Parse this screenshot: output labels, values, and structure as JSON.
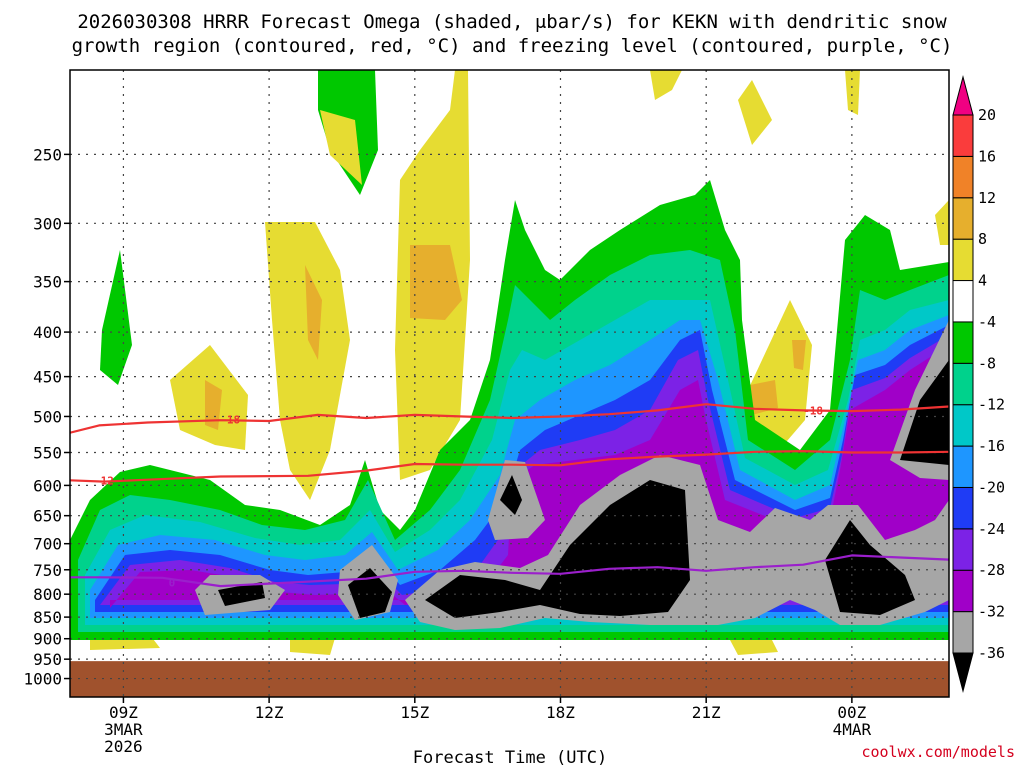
{
  "chart_data": {
    "type": "heatmap",
    "title_line1": "2026030308 HRRR Forecast Omega (shaded, μbar/s) for KEKN with dendritic snow",
    "title_line2": "growth region (contoured, red, °C) and freezing level (contoured, purple, °C)",
    "xlabel": "Forecast Time (UTC)",
    "credit": "coolwx.com/models",
    "y_axis": {
      "scale": "log-pressure",
      "range_hpa": [
        1050,
        200
      ],
      "ticks": [
        250,
        300,
        350,
        400,
        450,
        500,
        550,
        600,
        650,
        700,
        750,
        800,
        850,
        900,
        950,
        1000
      ]
    },
    "x_axis": {
      "range_hours": [
        7.9,
        26.0
      ],
      "ticks": [
        {
          "hour": 9,
          "label": "09Z",
          "sub1": "3MAR",
          "sub2": "2026"
        },
        {
          "hour": 12,
          "label": "12Z",
          "sub1": "",
          "sub2": ""
        },
        {
          "hour": 15,
          "label": "15Z",
          "sub1": "",
          "sub2": ""
        },
        {
          "hour": 18,
          "label": "18Z",
          "sub1": "",
          "sub2": ""
        },
        {
          "hour": 21,
          "label": "21Z",
          "sub1": "",
          "sub2": ""
        },
        {
          "hour": 24,
          "label": "00Z",
          "sub1": "4MAR",
          "sub2": ""
        }
      ]
    },
    "grid": true,
    "ground_level_hpa": 955,
    "ground_color": "#a0522d",
    "colorbar": {
      "position": "right",
      "levels": [
        -36,
        -32,
        -28,
        -24,
        -20,
        -16,
        -12,
        -8,
        -4,
        4,
        8,
        12,
        16,
        20
      ],
      "tick_labels": [
        "20",
        "16",
        "12",
        "8",
        "4",
        "-4",
        "-8",
        "-12",
        "-16",
        "-20",
        "-24",
        "-28",
        "-32",
        "-36"
      ],
      "colors": [
        "#000000",
        "#a6a6a6",
        "#a000c8",
        "#7c22e6",
        "#1f3cf5",
        "#1e96ff",
        "#00c8c8",
        "#00d28c",
        "#00c800",
        "#ffffff",
        "#e6dc32",
        "#e6af2d",
        "#f08228",
        "#fa3c3c",
        "#f00082"
      ]
    },
    "contours": [
      {
        "color": "#ee3333",
        "value": -18,
        "label": "-18",
        "points": [
          [
            7.9,
            522
          ],
          [
            8.5,
            512
          ],
          [
            9.5,
            508
          ],
          [
            11,
            505
          ],
          [
            12,
            506
          ],
          [
            13,
            498
          ],
          [
            14,
            502
          ],
          [
            15,
            498
          ],
          [
            16,
            500
          ],
          [
            17,
            502
          ],
          [
            18,
            500
          ],
          [
            19,
            497
          ],
          [
            20,
            492
          ],
          [
            21,
            484
          ],
          [
            22,
            490
          ],
          [
            23,
            492
          ],
          [
            24,
            493
          ],
          [
            25,
            491
          ],
          [
            26,
            487
          ]
        ]
      },
      {
        "color": "#ee3333",
        "value": -12,
        "label": "-12",
        "points": [
          [
            7.9,
            592
          ],
          [
            8.6,
            594
          ],
          [
            9.5,
            591
          ],
          [
            11,
            586
          ],
          [
            12.8,
            585
          ],
          [
            14,
            577
          ],
          [
            15,
            567
          ],
          [
            16,
            568
          ],
          [
            17,
            568
          ],
          [
            18,
            569
          ],
          [
            19,
            560
          ],
          [
            20,
            556
          ],
          [
            21,
            553
          ],
          [
            22,
            549
          ],
          [
            23,
            548
          ],
          [
            24,
            550
          ],
          [
            25,
            550
          ],
          [
            26,
            549
          ]
        ]
      },
      {
        "color": "#9b1fcc",
        "value": 0,
        "label": "0",
        "points": [
          [
            7.9,
            765
          ],
          [
            8.5,
            765
          ],
          [
            9.8,
            766
          ],
          [
            11,
            783
          ],
          [
            12,
            778
          ],
          [
            14,
            768
          ],
          [
            15,
            754
          ],
          [
            16,
            752
          ],
          [
            17,
            756
          ],
          [
            18,
            758
          ],
          [
            19,
            748
          ],
          [
            20,
            745
          ],
          [
            21,
            752
          ],
          [
            22,
            745
          ],
          [
            23,
            740
          ],
          [
            24,
            722
          ],
          [
            25,
            726
          ],
          [
            26,
            730
          ]
        ]
      }
    ],
    "contour_labels": [
      {
        "text": "-18",
        "hour": 11.2,
        "p": 504,
        "color": "#ee3333"
      },
      {
        "text": "-18",
        "hour": 23.2,
        "p": 492,
        "color": "#ee3333"
      },
      {
        "text": "-12",
        "hour": 8.6,
        "p": 592,
        "color": "#ee3333"
      },
      {
        "text": "0",
        "hour": 10.0,
        "p": 776,
        "color": "#9b1fcc"
      }
    ]
  }
}
